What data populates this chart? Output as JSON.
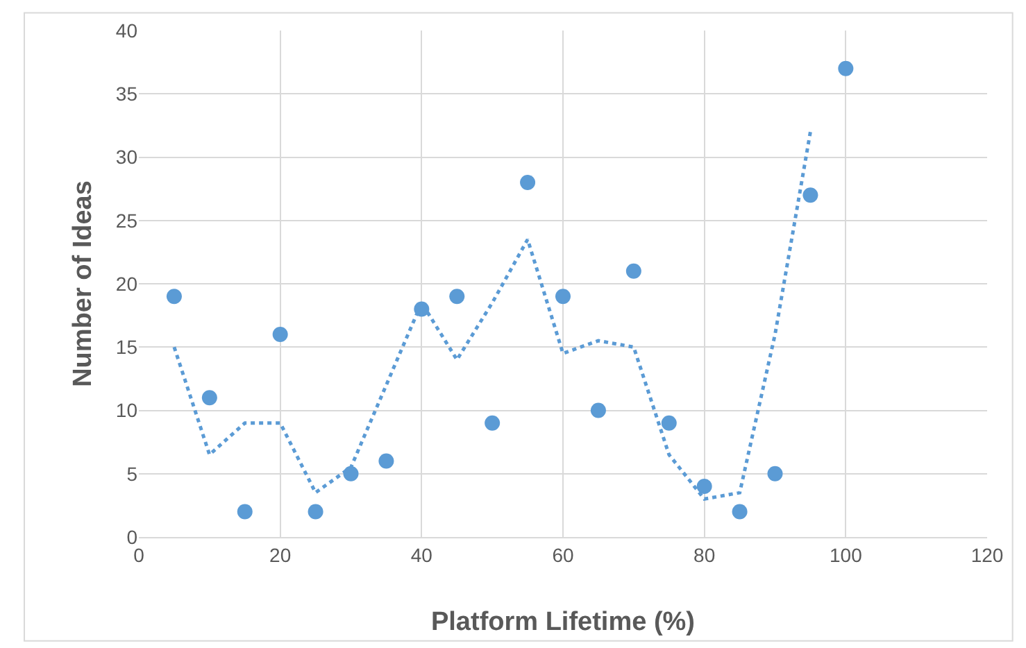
{
  "chart_data": {
    "type": "scatter",
    "xlabel": "Platform Lifetime (%)",
    "ylabel": "Number of Ideas",
    "x": [
      5,
      10,
      15,
      20,
      25,
      30,
      35,
      40,
      45,
      50,
      55,
      60,
      65,
      70,
      75,
      80,
      85,
      90,
      95,
      100
    ],
    "series": [
      {
        "color": "#5b9bd5",
        "marker": "circle",
        "values": [
          19,
          11,
          2,
          16,
          2,
          5,
          6,
          18,
          19,
          9,
          28,
          19,
          10,
          21,
          9,
          4,
          2,
          5,
          27,
          37
        ]
      },
      {
        "type": "line",
        "color": "#5b9bd5",
        "line_style": "dotted",
        "marker": "none",
        "x": [
          5,
          10,
          15,
          20,
          25,
          30,
          35,
          40,
          45,
          50,
          55,
          60,
          65,
          70,
          75,
          80,
          85,
          90,
          95
        ],
        "values": [
          15,
          6.5,
          9,
          9,
          3.5,
          5.5,
          12,
          18.5,
          14,
          18.5,
          23.5,
          14.5,
          15.5,
          15,
          6.5,
          3,
          3.5,
          16,
          32
        ]
      }
    ],
    "xlim": [
      0,
      120
    ],
    "xticks": [
      0,
      20,
      40,
      60,
      80,
      100,
      120
    ],
    "ylim": [
      0,
      40
    ],
    "yticks": [
      0,
      5,
      10,
      15,
      20,
      25,
      30,
      35,
      40
    ],
    "grid": true
  }
}
